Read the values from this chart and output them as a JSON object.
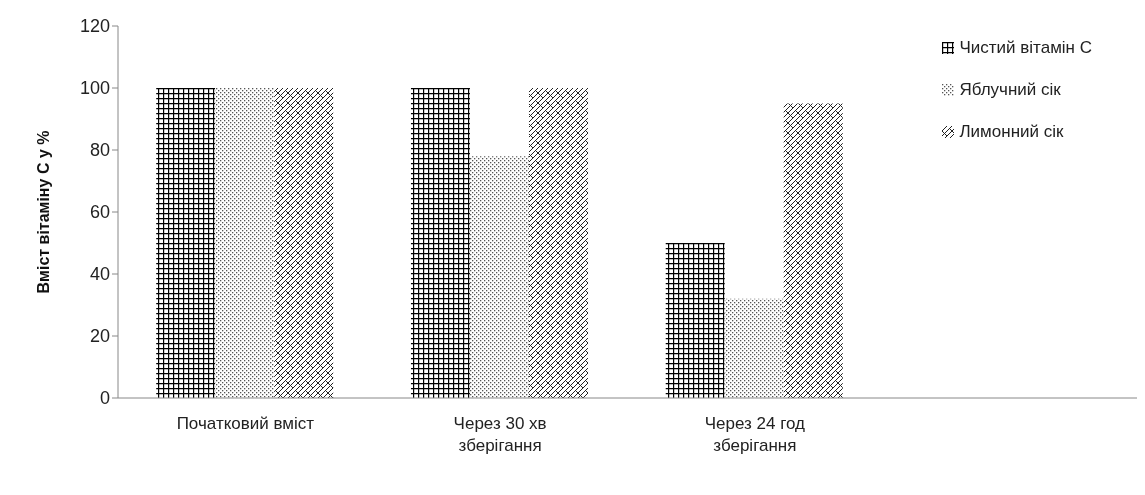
{
  "chart_data": {
    "type": "bar",
    "ylabel": "Вміст вітаміну С у %",
    "categories": [
      "Початковий вміст",
      "Через 30 хв зберігання",
      "Через 24 год зберігання",
      null
    ],
    "series": [
      {
        "name": "Чистий вітамін С",
        "color": "#000000",
        "values": [
          100,
          100,
          50,
          null
        ]
      },
      {
        "name": "Яблучний сік",
        "color": "#555555",
        "values": [
          100,
          78,
          32,
          null
        ]
      },
      {
        "name": "Лимонний сік",
        "color": "#222222",
        "values": [
          100,
          100,
          95,
          null
        ]
      }
    ],
    "ylim": [
      0,
      120
    ],
    "yticks": [
      0,
      20,
      40,
      60,
      80,
      100,
      120
    ],
    "legend": "top right"
  }
}
